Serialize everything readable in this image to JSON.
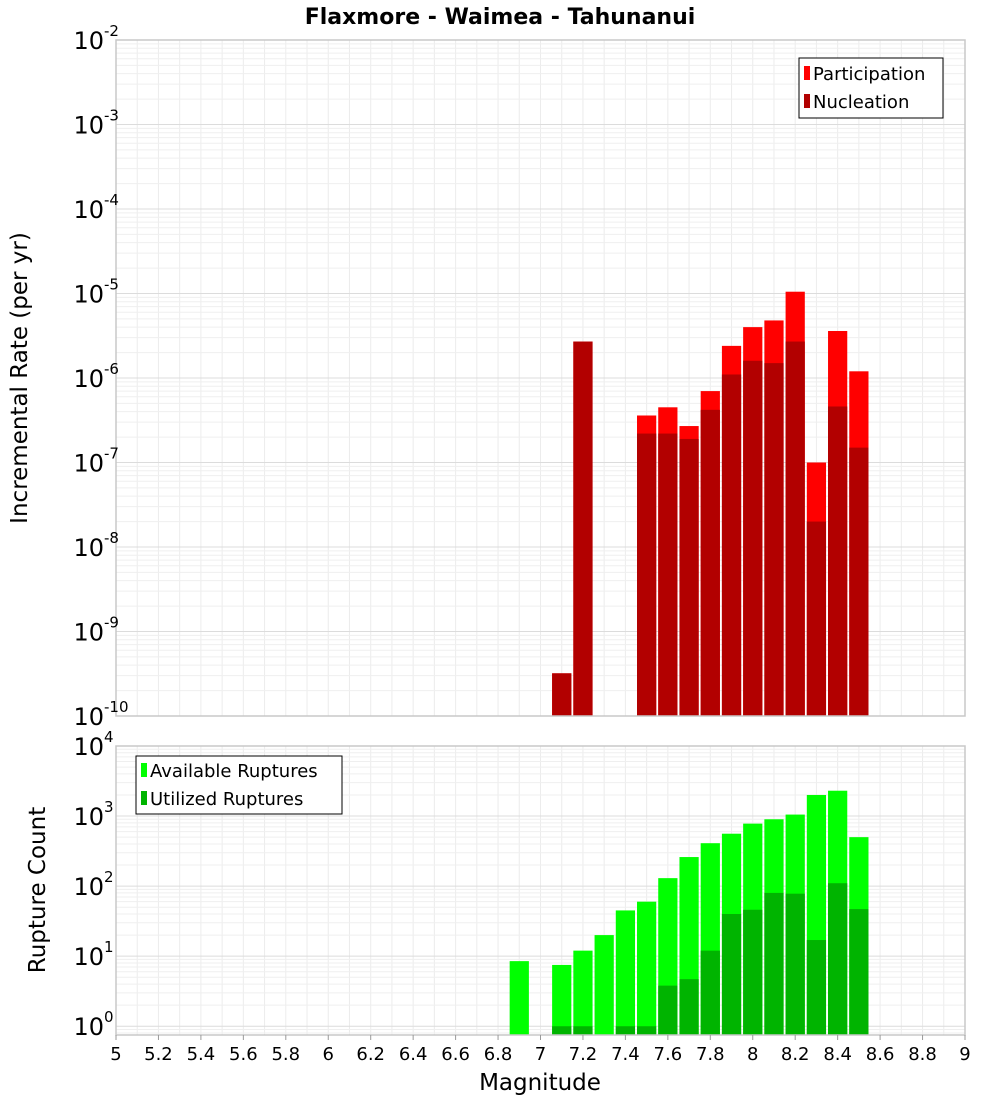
{
  "chart_data": [
    {
      "type": "bar",
      "title": "Flaxmore - Waimea - Tahunanui",
      "xlabel": "Magnitude",
      "ylabel": "Incremental Rate (per yr)",
      "y_scale": "log",
      "xlim": [
        5,
        9
      ],
      "ylim": [
        1e-10,
        0.01
      ],
      "bin_width": 0.1,
      "legend_position": "top-right",
      "grid": true,
      "y_ticks": [
        {
          "base": "10",
          "exp": "-10"
        },
        {
          "base": "10",
          "exp": "-9"
        },
        {
          "base": "10",
          "exp": "-8"
        },
        {
          "base": "10",
          "exp": "-7"
        },
        {
          "base": "10",
          "exp": "-6"
        },
        {
          "base": "10",
          "exp": "-5"
        },
        {
          "base": "10",
          "exp": "-4"
        },
        {
          "base": "10",
          "exp": "-3"
        },
        {
          "base": "10",
          "exp": "-2"
        }
      ],
      "x": [
        7.1,
        7.2,
        7.5,
        7.6,
        7.7,
        7.8,
        7.9,
        8.0,
        8.1,
        8.2,
        8.3,
        8.4,
        8.5
      ],
      "series": [
        {
          "name": "Participation",
          "color": "#ff0000",
          "values": [
            3.2e-10,
            2.7e-06,
            3.6e-07,
            4.5e-07,
            2.7e-07,
            7e-07,
            2.4e-06,
            4e-06,
            4.8e-06,
            1.05e-05,
            1e-07,
            3.6e-06,
            1.2e-06
          ]
        },
        {
          "name": "Nucleation",
          "color": "#b20000",
          "values": [
            3.2e-10,
            2.7e-06,
            2.2e-07,
            2.2e-07,
            1.9e-07,
            4.2e-07,
            1.1e-06,
            1.6e-06,
            1.5e-06,
            2.7e-06,
            2e-08,
            4.6e-07,
            1.5e-07
          ]
        }
      ]
    },
    {
      "type": "bar",
      "xlabel": "Magnitude",
      "ylabel": "Rupture Count",
      "y_scale": "log",
      "xlim": [
        5,
        9
      ],
      "ylim": [
        0.75,
        10000.0
      ],
      "bin_width": 0.1,
      "legend_position": "top-left",
      "grid": true,
      "x_ticks": [
        "5",
        "5.2",
        "5.4",
        "5.6",
        "5.8",
        "6",
        "6.2",
        "6.4",
        "6.6",
        "6.8",
        "7",
        "7.2",
        "7.4",
        "7.6",
        "7.8",
        "8",
        "8.2",
        "8.4",
        "8.6",
        "8.8",
        "9"
      ],
      "y_ticks": [
        {
          "base": "10",
          "exp": "0"
        },
        {
          "base": "10",
          "exp": "1"
        },
        {
          "base": "10",
          "exp": "2"
        },
        {
          "base": "10",
          "exp": "3"
        },
        {
          "base": "10",
          "exp": "4"
        }
      ],
      "x": [
        6.9,
        7.1,
        7.2,
        7.3,
        7.4,
        7.5,
        7.6,
        7.7,
        7.8,
        7.9,
        8.0,
        8.1,
        8.2,
        8.3,
        8.4,
        8.5
      ],
      "series": [
        {
          "name": "Available Ruptures",
          "color": "#00ff00",
          "values": [
            8.5,
            7.5,
            12,
            20,
            45,
            60,
            130,
            260,
            410,
            560,
            780,
            900,
            1050,
            2000,
            2300,
            500
          ]
        },
        {
          "name": "Utilized Ruptures",
          "color": "#00b400",
          "values": [
            0,
            1,
            1,
            0,
            1,
            1,
            3.8,
            4.7,
            12,
            40,
            46,
            80,
            78,
            17,
            110,
            47
          ]
        }
      ]
    }
  ]
}
